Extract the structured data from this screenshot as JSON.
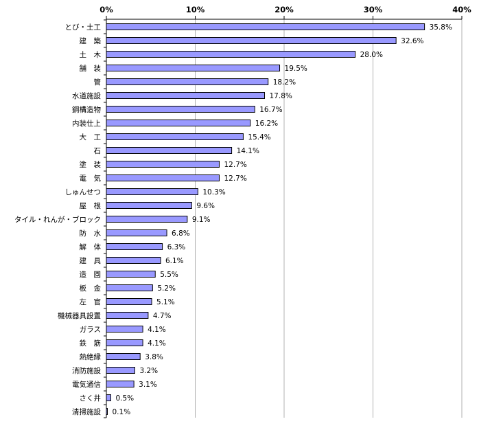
{
  "chart_data": {
    "type": "bar",
    "orientation": "horizontal",
    "x_axis_position": "top",
    "xlim": [
      0,
      40
    ],
    "x_ticks": [
      0,
      10,
      20,
      30,
      40
    ],
    "x_tick_labels": [
      "0%",
      "10%",
      "20%",
      "30%",
      "40%"
    ],
    "grid": true,
    "categories": [
      "とび・土工",
      "建　築",
      "土　木",
      "舗　装",
      "管",
      "水道施設",
      "鋼構造物",
      "内装仕上",
      "大　工",
      "石",
      "塗　装",
      "電　気",
      "しゅんせつ",
      "屋　根",
      "タイル・れんが・ブロック",
      "防　水",
      "解　体",
      "建　具",
      "造　園",
      "板　金",
      "左　官",
      "機械器具設置",
      "ガラス",
      "鉄　筋",
      "熱絶縁",
      "消防施設",
      "電気通信",
      "さく井",
      "清掃施設"
    ],
    "values": [
      35.8,
      32.6,
      28.0,
      19.5,
      18.2,
      17.8,
      16.7,
      16.2,
      15.4,
      14.1,
      12.7,
      12.7,
      10.3,
      9.6,
      9.1,
      6.8,
      6.3,
      6.1,
      5.5,
      5.2,
      5.1,
      4.7,
      4.1,
      4.1,
      3.8,
      3.2,
      3.1,
      0.5,
      0.1
    ],
    "value_labels": [
      "35.8%",
      "32.6%",
      "28.0%",
      "19.5%",
      "18.2%",
      "17.8%",
      "16.7%",
      "16.2%",
      "15.4%",
      "14.1%",
      "12.7%",
      "12.7%",
      "10.3%",
      "9.6%",
      "9.1%",
      "6.8%",
      "6.3%",
      "6.1%",
      "5.5%",
      "5.2%",
      "5.1%",
      "4.7%",
      "4.1%",
      "4.1%",
      "3.8%",
      "3.2%",
      "3.1%",
      "0.5%",
      "0.1%"
    ],
    "colors": {
      "bar_fill": "#9999ff",
      "bar_stroke": "#000000",
      "grid": "#b0b0b0",
      "axis": "#000000"
    }
  }
}
